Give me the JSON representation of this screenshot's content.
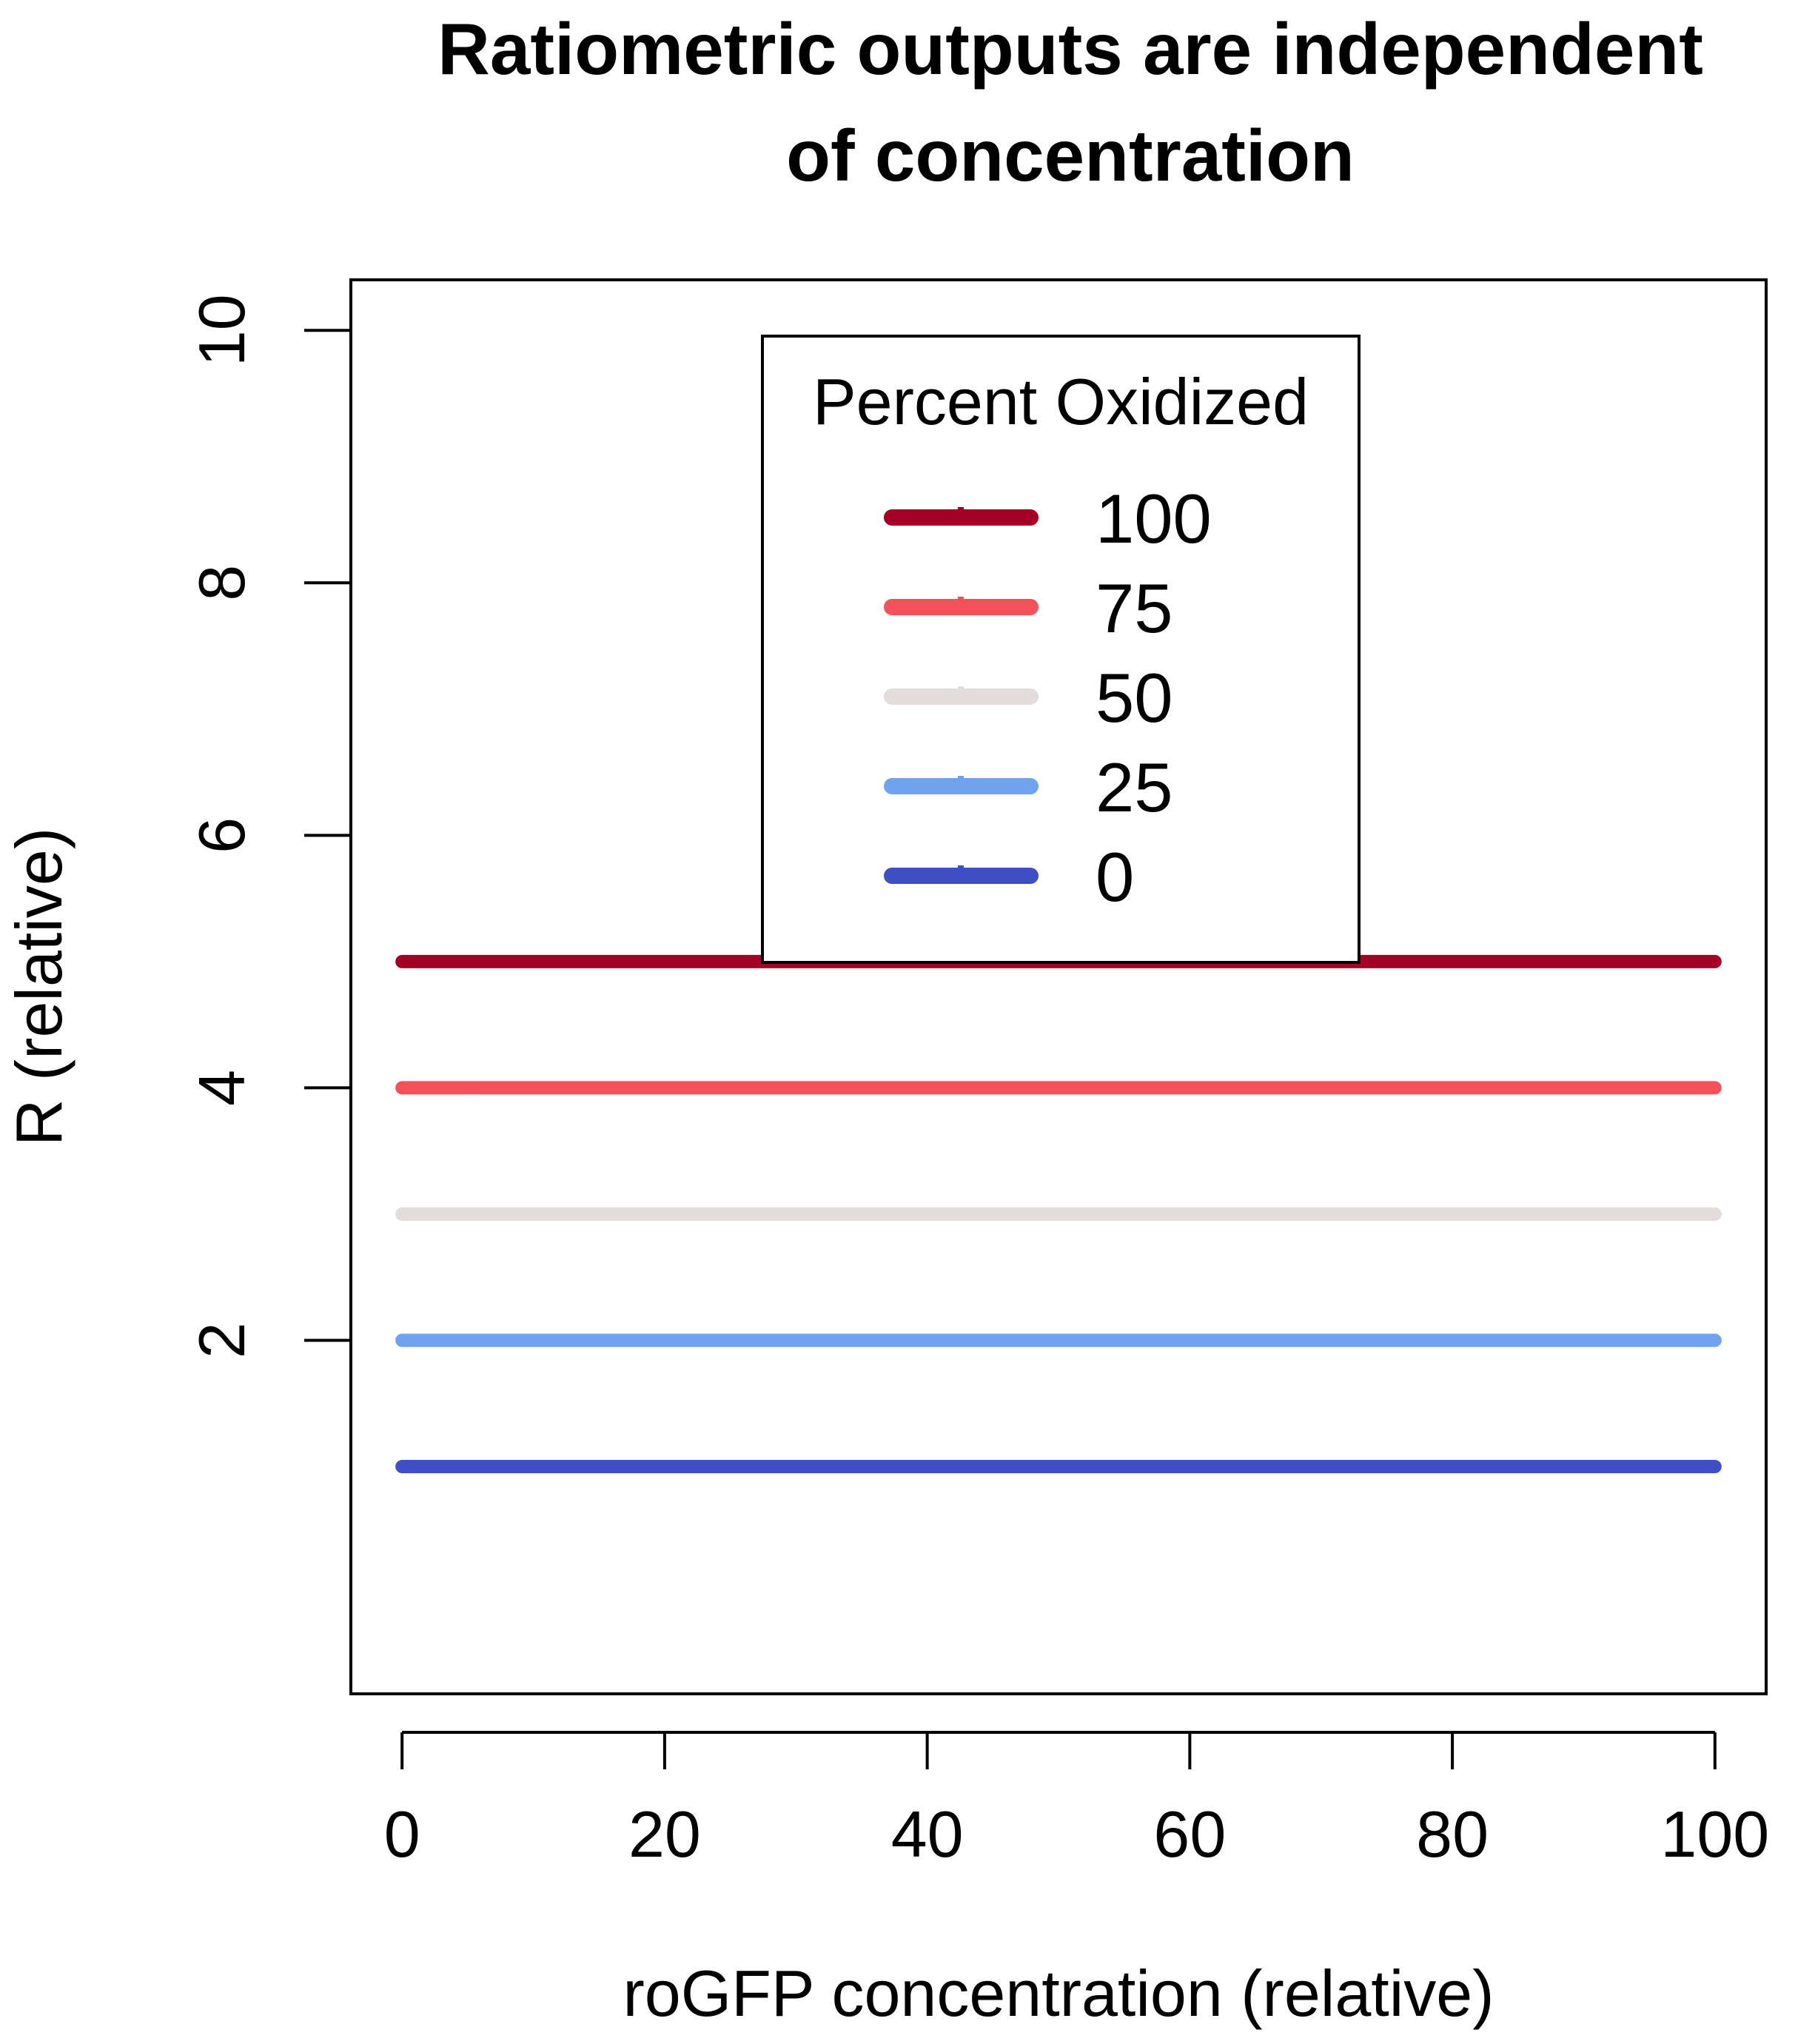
{
  "chart_data": {
    "type": "line",
    "title_lines": [
      "Ratiometric outputs are independent",
      "of concentration"
    ],
    "xlabel": "roGFP concentration (relative)",
    "ylabel": "R (relative)",
    "xlim": [
      -3.9,
      103.9
    ],
    "ylim": [
      -0.8,
      10.4
    ],
    "x_ticks": [
      0,
      20,
      40,
      60,
      80,
      100
    ],
    "y_ticks": [
      2,
      4,
      6,
      8,
      10
    ],
    "grid": false,
    "legend": {
      "title": "Percent Oxidized",
      "placement": "top-center"
    },
    "series": [
      {
        "name": "100",
        "color": "#a50026",
        "x": [
          0,
          100
        ],
        "y": [
          5,
          5
        ]
      },
      {
        "name": "75",
        "color": "#f4525b",
        "x": [
          0,
          100
        ],
        "y": [
          4,
          4
        ]
      },
      {
        "name": "50",
        "color": "#e3dcdc",
        "x": [
          0,
          100
        ],
        "y": [
          3,
          3
        ]
      },
      {
        "name": "25",
        "color": "#6fa3ef",
        "x": [
          0,
          100
        ],
        "y": [
          2,
          2
        ]
      },
      {
        "name": "0",
        "color": "#3f50c6",
        "x": [
          0,
          100
        ],
        "y": [
          1,
          1
        ]
      }
    ]
  }
}
